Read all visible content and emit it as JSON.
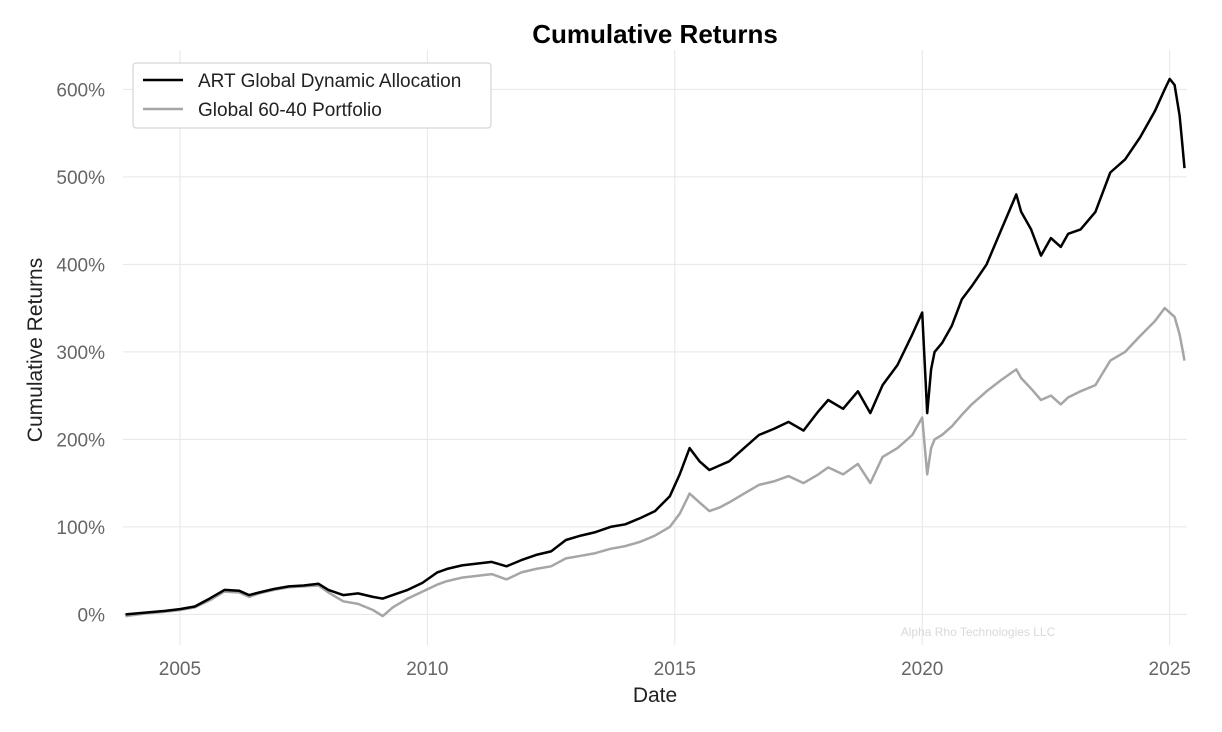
{
  "chart_data": {
    "type": "line",
    "title": "Cumulative Returns",
    "xlabel": "Date",
    "ylabel": "Cumulative Returns",
    "xlim": [
      2003.85,
      2025.35
    ],
    "ylim": [
      -35,
      645
    ],
    "x_ticks": [
      {
        "value": 2005,
        "label": "2005"
      },
      {
        "value": 2010,
        "label": "2010"
      },
      {
        "value": 2015,
        "label": "2015"
      },
      {
        "value": 2020,
        "label": "2020"
      },
      {
        "value": 2025,
        "label": "2025"
      }
    ],
    "y_ticks": [
      {
        "value": 0,
        "label": "0%"
      },
      {
        "value": 100,
        "label": "100%"
      },
      {
        "value": 200,
        "label": "200%"
      },
      {
        "value": 300,
        "label": "300%"
      },
      {
        "value": 400,
        "label": "400%"
      },
      {
        "value": 500,
        "label": "500%"
      },
      {
        "value": 600,
        "label": "600%"
      }
    ],
    "grid": true,
    "legend_position": "top-left",
    "watermark": "Alpha Rho Technologies LLC",
    "series": [
      {
        "name": "ART Global Dynamic Allocation",
        "color": "#000000",
        "x": [
          2003.9,
          2004.3,
          2004.7,
          2005.0,
          2005.3,
          2005.6,
          2005.9,
          2006.2,
          2006.4,
          2006.6,
          2006.9,
          2007.2,
          2007.5,
          2007.8,
          2008.0,
          2008.3,
          2008.6,
          2008.9,
          2009.1,
          2009.3,
          2009.6,
          2009.9,
          2010.2,
          2010.4,
          2010.7,
          2011.0,
          2011.3,
          2011.6,
          2011.9,
          2012.2,
          2012.5,
          2012.8,
          2013.1,
          2013.4,
          2013.7,
          2014.0,
          2014.3,
          2014.6,
          2014.9,
          2015.1,
          2015.3,
          2015.5,
          2015.7,
          2015.9,
          2016.1,
          2016.4,
          2016.7,
          2017.0,
          2017.3,
          2017.6,
          2017.9,
          2018.1,
          2018.4,
          2018.7,
          2018.95,
          2019.2,
          2019.5,
          2019.8,
          2020.0,
          2020.1,
          2020.18,
          2020.25,
          2020.4,
          2020.6,
          2020.8,
          2021.0,
          2021.3,
          2021.6,
          2021.9,
          2022.0,
          2022.2,
          2022.4,
          2022.6,
          2022.8,
          2022.95,
          2023.2,
          2023.5,
          2023.8,
          2024.1,
          2024.4,
          2024.7,
          2024.9,
          2025.0,
          2025.1,
          2025.2,
          2025.25,
          2025.3
        ],
        "y": [
          0,
          2,
          4,
          6,
          9,
          18,
          28,
          27,
          22,
          25,
          29,
          32,
          33,
          35,
          28,
          22,
          24,
          20,
          18,
          22,
          28,
          36,
          48,
          52,
          56,
          58,
          60,
          55,
          62,
          68,
          72,
          85,
          90,
          94,
          100,
          103,
          110,
          118,
          135,
          160,
          190,
          175,
          165,
          170,
          175,
          190,
          205,
          212,
          220,
          210,
          232,
          245,
          235,
          255,
          230,
          262,
          285,
          320,
          345,
          230,
          280,
          300,
          310,
          330,
          360,
          375,
          400,
          440,
          480,
          460,
          440,
          410,
          430,
          420,
          435,
          440,
          460,
          505,
          520,
          545,
          575,
          600,
          612,
          605,
          570,
          540,
          510
        ]
      },
      {
        "name": "Global 60-40 Portfolio",
        "color": "#a6a6a6",
        "x": [
          2003.9,
          2004.3,
          2004.7,
          2005.0,
          2005.3,
          2005.6,
          2005.9,
          2006.2,
          2006.4,
          2006.6,
          2006.9,
          2007.2,
          2007.5,
          2007.8,
          2008.0,
          2008.3,
          2008.6,
          2008.9,
          2009.1,
          2009.3,
          2009.6,
          2009.9,
          2010.2,
          2010.4,
          2010.7,
          2011.0,
          2011.3,
          2011.6,
          2011.9,
          2012.2,
          2012.5,
          2012.8,
          2013.1,
          2013.4,
          2013.7,
          2014.0,
          2014.3,
          2014.6,
          2014.9,
          2015.1,
          2015.3,
          2015.5,
          2015.7,
          2015.9,
          2016.1,
          2016.4,
          2016.7,
          2017.0,
          2017.3,
          2017.6,
          2017.9,
          2018.1,
          2018.4,
          2018.7,
          2018.95,
          2019.2,
          2019.5,
          2019.8,
          2020.0,
          2020.1,
          2020.18,
          2020.25,
          2020.4,
          2020.6,
          2020.8,
          2021.0,
          2021.3,
          2021.6,
          2021.9,
          2022.0,
          2022.2,
          2022.4,
          2022.6,
          2022.8,
          2022.95,
          2023.2,
          2023.5,
          2023.8,
          2024.1,
          2024.4,
          2024.7,
          2024.9,
          2025.0,
          2025.1,
          2025.2,
          2025.25,
          2025.3
        ],
        "y": [
          -2,
          1,
          3,
          5,
          8,
          16,
          26,
          25,
          20,
          24,
          28,
          31,
          32,
          33,
          25,
          15,
          12,
          5,
          -2,
          8,
          18,
          26,
          34,
          38,
          42,
          44,
          46,
          40,
          48,
          52,
          55,
          64,
          67,
          70,
          75,
          78,
          83,
          90,
          100,
          115,
          138,
          128,
          118,
          122,
          128,
          138,
          148,
          152,
          158,
          150,
          160,
          168,
          160,
          172,
          150,
          180,
          190,
          205,
          225,
          160,
          190,
          200,
          205,
          215,
          228,
          240,
          255,
          268,
          280,
          270,
          258,
          245,
          250,
          240,
          248,
          255,
          262,
          290,
          300,
          318,
          335,
          350,
          345,
          340,
          320,
          305,
          290
        ]
      }
    ]
  }
}
